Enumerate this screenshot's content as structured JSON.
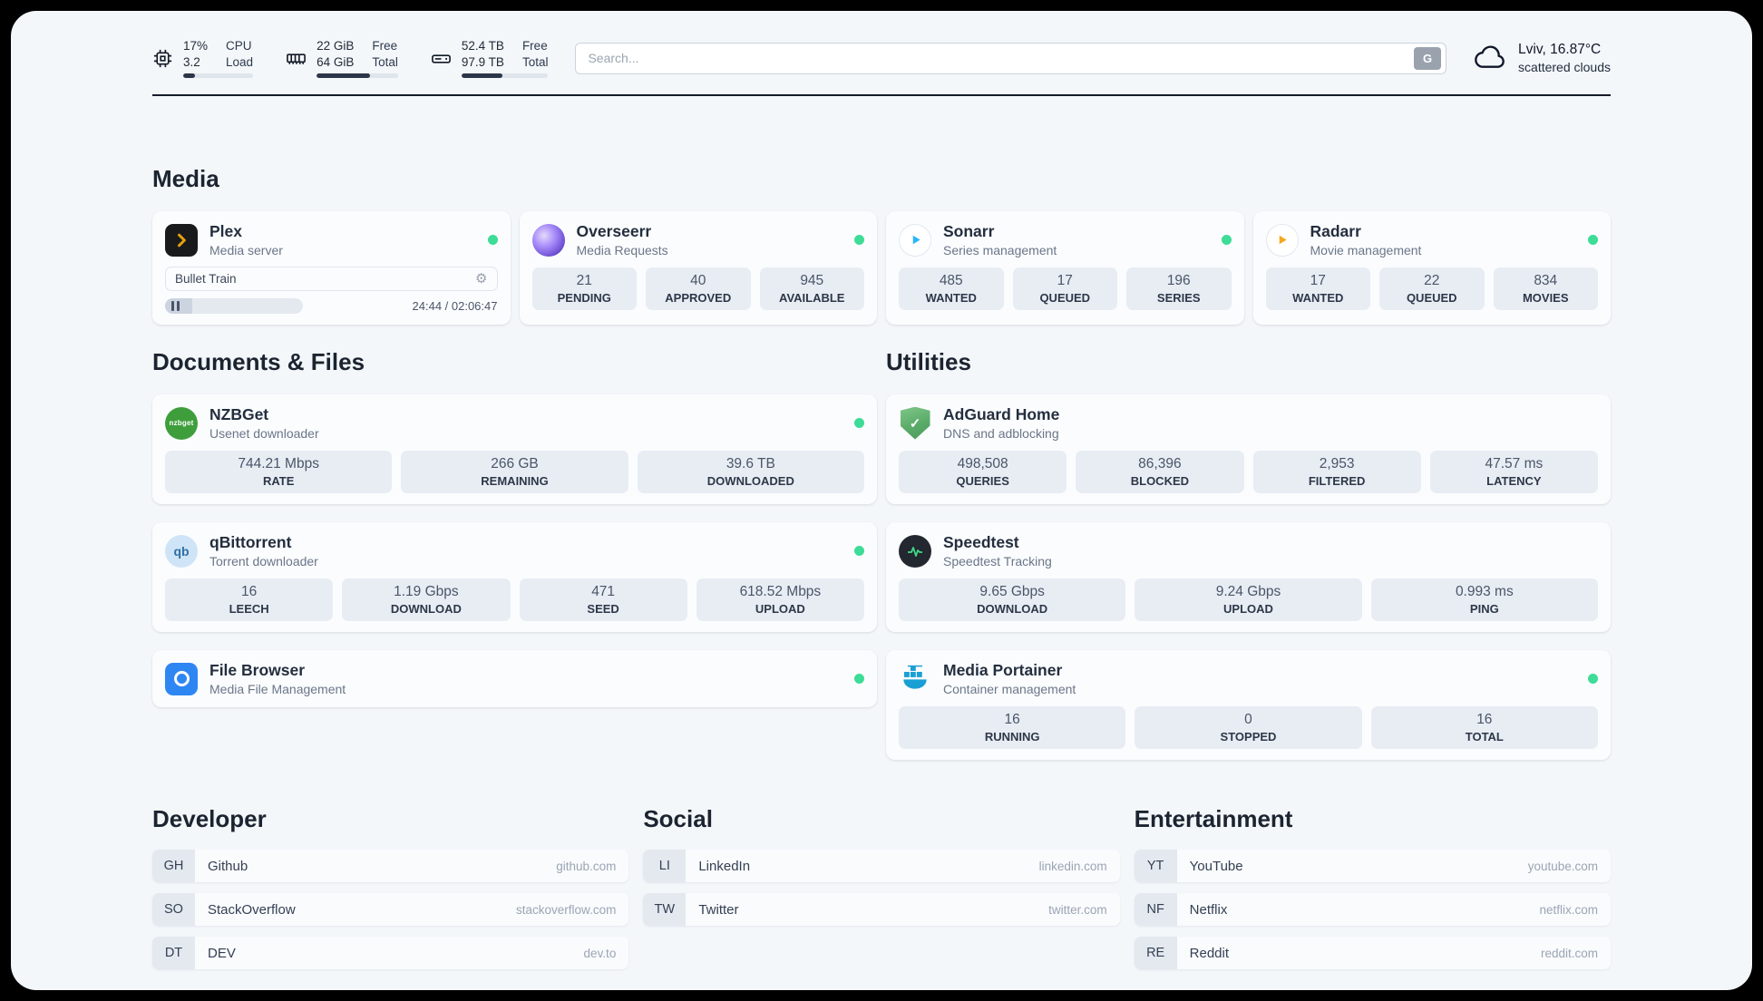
{
  "colors": {
    "status_online": "#3ddc97",
    "page_background": "#f4f7fa",
    "stat_tile": "#e8edf4"
  },
  "header": {
    "cpu": {
      "value1": "17%",
      "label1": "CPU",
      "value2": "3.2",
      "label2": "Load",
      "progress": 17
    },
    "ram": {
      "value1": "22 GiB",
      "label1": "Free",
      "value2": "64 GiB",
      "label2": "Total",
      "progress": 66
    },
    "disk": {
      "value1": "52.4 TB",
      "label1": "Free",
      "value2": "97.9 TB",
      "label2": "Total",
      "progress": 47
    },
    "search": {
      "placeholder": "Search...",
      "button_label": "G"
    },
    "weather": {
      "location": "Lviv, 16.87°C",
      "condition": "scattered clouds"
    }
  },
  "sections": {
    "media": {
      "title": "Media",
      "plex": {
        "name": "Plex",
        "desc": "Media server",
        "now_playing": "Bullet Train",
        "time": "24:44 / 02:06:47",
        "player_progress": 20
      },
      "overseerr": {
        "name": "Overseerr",
        "desc": "Media Requests",
        "stats": [
          {
            "value": "21",
            "label": "PENDING"
          },
          {
            "value": "40",
            "label": "APPROVED"
          },
          {
            "value": "945",
            "label": "AVAILABLE"
          }
        ]
      },
      "sonarr": {
        "name": "Sonarr",
        "desc": "Series management",
        "stats": [
          {
            "value": "485",
            "label": "WANTED"
          },
          {
            "value": "17",
            "label": "QUEUED"
          },
          {
            "value": "196",
            "label": "SERIES"
          }
        ]
      },
      "radarr": {
        "name": "Radarr",
        "desc": "Movie management",
        "stats": [
          {
            "value": "17",
            "label": "WANTED"
          },
          {
            "value": "22",
            "label": "QUEUED"
          },
          {
            "value": "834",
            "label": "MOVIES"
          }
        ]
      }
    },
    "documents": {
      "title": "Documents & Files",
      "nzbget": {
        "name": "NZBGet",
        "desc": "Usenet downloader",
        "icon_text": "nzbget",
        "stats": [
          {
            "value": "744.21 Mbps",
            "label": "RATE"
          },
          {
            "value": "266 GB",
            "label": "REMAINING"
          },
          {
            "value": "39.6 TB",
            "label": "DOWNLOADED"
          }
        ]
      },
      "qbittorrent": {
        "name": "qBittorrent",
        "desc": "Torrent downloader",
        "icon_text": "qb",
        "stats": [
          {
            "value": "16",
            "label": "LEECH"
          },
          {
            "value": "1.19 Gbps",
            "label": "DOWNLOAD"
          },
          {
            "value": "471",
            "label": "SEED"
          },
          {
            "value": "618.52 Mbps",
            "label": "UPLOAD"
          }
        ]
      },
      "filebrowser": {
        "name": "File Browser",
        "desc": "Media File Management"
      }
    },
    "utilities": {
      "title": "Utilities",
      "adguard": {
        "name": "AdGuard Home",
        "desc": "DNS and adblocking",
        "stats": [
          {
            "value": "498,508",
            "label": "QUERIES"
          },
          {
            "value": "86,396",
            "label": "BLOCKED"
          },
          {
            "value": "2,953",
            "label": "FILTERED"
          },
          {
            "value": "47.57 ms",
            "label": "LATENCY"
          }
        ]
      },
      "speedtest": {
        "name": "Speedtest",
        "desc": "Speedtest Tracking",
        "stats": [
          {
            "value": "9.65 Gbps",
            "label": "DOWNLOAD"
          },
          {
            "value": "9.24 Gbps",
            "label": "UPLOAD"
          },
          {
            "value": "0.993 ms",
            "label": "PING"
          }
        ]
      },
      "portainer": {
        "name": "Media Portainer",
        "desc": "Container management",
        "stats": [
          {
            "value": "16",
            "label": "RUNNING"
          },
          {
            "value": "0",
            "label": "STOPPED"
          },
          {
            "value": "16",
            "label": "TOTAL"
          }
        ]
      }
    },
    "bookmarks": {
      "developer": {
        "title": "Developer",
        "items": [
          {
            "abbr": "GH",
            "name": "Github",
            "url": "github.com"
          },
          {
            "abbr": "SO",
            "name": "StackOverflow",
            "url": "stackoverflow.com"
          },
          {
            "abbr": "DT",
            "name": "DEV",
            "url": "dev.to"
          }
        ]
      },
      "social": {
        "title": "Social",
        "items": [
          {
            "abbr": "LI",
            "name": "LinkedIn",
            "url": "linkedin.com"
          },
          {
            "abbr": "TW",
            "name": "Twitter",
            "url": "twitter.com"
          }
        ]
      },
      "entertainment": {
        "title": "Entertainment",
        "items": [
          {
            "abbr": "YT",
            "name": "YouTube",
            "url": "youtube.com"
          },
          {
            "abbr": "NF",
            "name": "Netflix",
            "url": "netflix.com"
          },
          {
            "abbr": "RE",
            "name": "Reddit",
            "url": "reddit.com"
          }
        ]
      }
    }
  }
}
